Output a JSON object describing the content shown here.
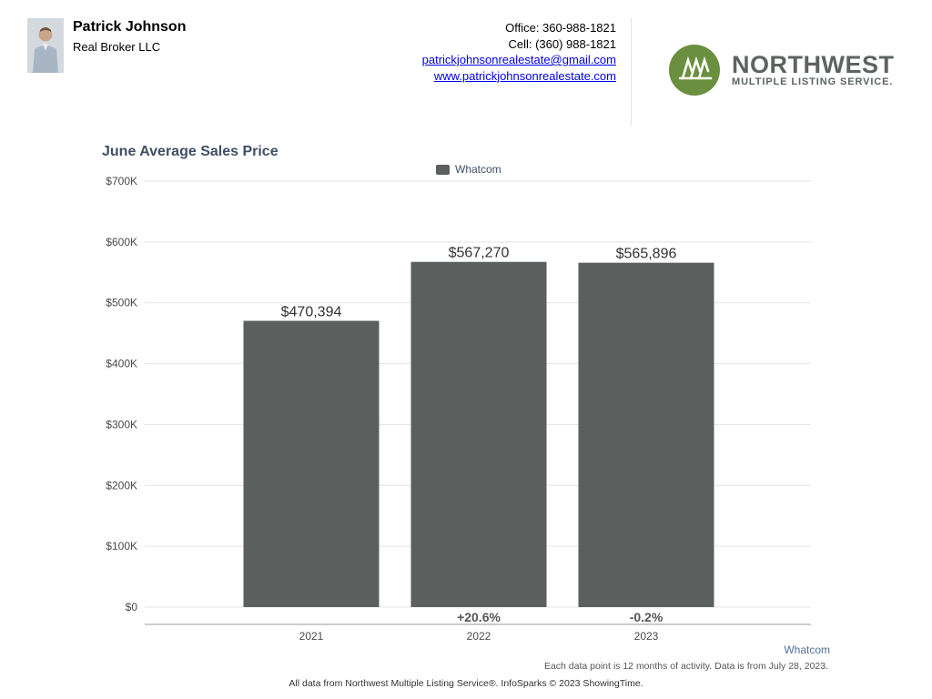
{
  "agent": {
    "name": "Patrick Johnson",
    "company": "Real Broker LLC",
    "office": "Office: 360-988-1821",
    "cell": "Cell: (360) 988-1821",
    "email": "patrickjohnsonrealestate@gmail.com",
    "website": "www.patrickjohnsonrealestate.com"
  },
  "logo": {
    "word": "NORTHWEST",
    "sub": "MULTIPLE LISTING SERVICE.",
    "color": "#6a8f3f"
  },
  "chart_data": {
    "type": "bar",
    "title": "June Average Sales Price",
    "legend": "Whatcom",
    "legend_position": "top-center",
    "categories": [
      "2021",
      "2022",
      "2023"
    ],
    "series": [
      {
        "name": "Whatcom",
        "values": [
          470394,
          567270,
          565896
        ],
        "color": "#5b5f5e"
      }
    ],
    "data_labels": [
      "$470,394",
      "$567,270",
      "$565,896"
    ],
    "change_labels": [
      "",
      "+20.6%",
      "-0.2%"
    ],
    "ylim": [
      0,
      700000
    ],
    "yticks": [
      0,
      100000,
      200000,
      300000,
      400000,
      500000,
      600000,
      700000
    ],
    "ytick_labels": [
      "$0",
      "$100K",
      "$200K",
      "$300K",
      "$400K",
      "$500K",
      "$600K",
      "$700K"
    ],
    "grid": true
  },
  "footer": {
    "region": "Whatcom",
    "note": "Each data point is 12 months of activity. Data is from July 28, 2023.",
    "source": "All data from Northwest Multiple Listing Service®. InfoSparks © 2023 ShowingTime."
  }
}
